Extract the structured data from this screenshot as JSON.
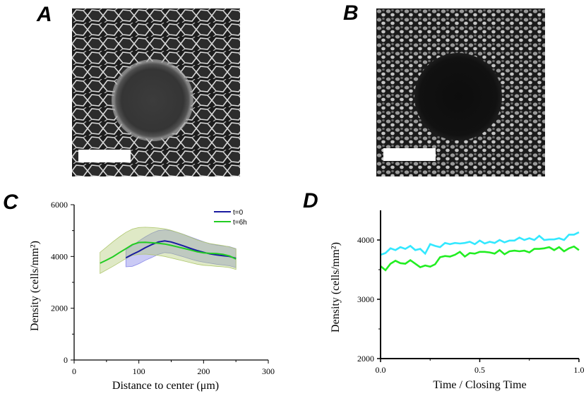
{
  "panels": {
    "a": "A",
    "b": "B",
    "c": "C",
    "d": "D"
  },
  "chart_data": [
    {
      "panel": "C",
      "type": "line",
      "title": "",
      "xlabel": "Distance to center (μm)",
      "ylabel": "Density (cells/mm²)",
      "xlim": [
        0,
        300
      ],
      "ylim": [
        0,
        6000
      ],
      "xticks": [
        0,
        100,
        200,
        300
      ],
      "yticks": [
        0,
        2000,
        4000,
        6000
      ],
      "legend_position": "top-right",
      "series": [
        {
          "name": "t=0",
          "color": "#1a1aa0",
          "band_color": "#8a8ae8",
          "x": [
            80,
            90,
            100,
            110,
            120,
            130,
            140,
            150,
            160,
            170,
            180,
            190,
            200,
            210,
            220,
            230,
            240,
            250
          ],
          "values": [
            3950,
            4080,
            4200,
            4340,
            4460,
            4560,
            4600,
            4560,
            4480,
            4400,
            4310,
            4230,
            4160,
            4100,
            4060,
            4030,
            4000,
            3930
          ],
          "lower": [
            3600,
            3620,
            3720,
            3850,
            3960,
            4080,
            4150,
            4120,
            4050,
            3980,
            3900,
            3830,
            3780,
            3740,
            3700,
            3670,
            3640,
            3570
          ],
          "upper": [
            4250,
            4420,
            4600,
            4760,
            4900,
            5000,
            5030,
            5000,
            4930,
            4850,
            4750,
            4660,
            4570,
            4490,
            4440,
            4410,
            4380,
            4300
          ]
        },
        {
          "name": "t=6h",
          "color": "#22cc22",
          "band_color": "#b0c870",
          "x": [
            40,
            50,
            60,
            70,
            80,
            90,
            100,
            110,
            120,
            130,
            140,
            150,
            160,
            170,
            180,
            190,
            200,
            210,
            220,
            230,
            240,
            250
          ],
          "values": [
            3740,
            3860,
            3990,
            4150,
            4300,
            4460,
            4540,
            4550,
            4530,
            4510,
            4480,
            4430,
            4370,
            4310,
            4250,
            4180,
            4140,
            4120,
            4110,
            4080,
            4020,
            3900
          ],
          "lower": [
            3340,
            3480,
            3620,
            3770,
            3920,
            4040,
            4080,
            4090,
            4070,
            4040,
            4000,
            3940,
            3880,
            3820,
            3760,
            3700,
            3660,
            3640,
            3620,
            3600,
            3570,
            3500
          ],
          "upper": [
            4160,
            4360,
            4570,
            4760,
            4930,
            5060,
            5120,
            5130,
            5120,
            5100,
            5070,
            5010,
            4930,
            4840,
            4740,
            4640,
            4560,
            4500,
            4460,
            4420,
            4370,
            4290
          ]
        }
      ]
    },
    {
      "panel": "D",
      "type": "line",
      "title": "",
      "xlabel": "Time / Closing Time",
      "ylabel": "Density (cells/mm²)",
      "xlim": [
        0,
        1
      ],
      "ylim": [
        2000,
        4500
      ],
      "xticks": [
        "0.0",
        "0.5",
        "1.0"
      ],
      "xtick_values": [
        0,
        0.5,
        1
      ],
      "yticks": [
        2000,
        3000,
        4000
      ],
      "series": [
        {
          "name": "cyan",
          "color": "#33e8ff",
          "x": [
            0,
            0.025,
            0.05,
            0.075,
            0.1,
            0.125,
            0.15,
            0.175,
            0.2,
            0.225,
            0.25,
            0.275,
            0.3,
            0.325,
            0.35,
            0.375,
            0.4,
            0.425,
            0.45,
            0.475,
            0.5,
            0.525,
            0.55,
            0.575,
            0.6,
            0.625,
            0.65,
            0.675,
            0.7,
            0.725,
            0.75,
            0.775,
            0.8,
            0.825,
            0.85,
            0.875,
            0.9,
            0.925,
            0.95,
            0.975,
            1.0
          ],
          "values": [
            3750,
            3780,
            3860,
            3830,
            3880,
            3850,
            3900,
            3830,
            3850,
            3770,
            3930,
            3900,
            3880,
            3950,
            3930,
            3950,
            3940,
            3950,
            3970,
            3930,
            3990,
            3940,
            3970,
            3950,
            4000,
            3960,
            3990,
            3990,
            4040,
            4000,
            4030,
            4000,
            4070,
            4000,
            4010,
            4010,
            4030,
            4000,
            4090,
            4090,
            4130
          ]
        },
        {
          "name": "green",
          "color": "#22ee22",
          "x": [
            0,
            0.025,
            0.05,
            0.075,
            0.1,
            0.125,
            0.15,
            0.175,
            0.2,
            0.225,
            0.25,
            0.275,
            0.3,
            0.325,
            0.35,
            0.375,
            0.4,
            0.425,
            0.45,
            0.475,
            0.5,
            0.525,
            0.55,
            0.575,
            0.6,
            0.625,
            0.65,
            0.675,
            0.7,
            0.725,
            0.75,
            0.775,
            0.8,
            0.825,
            0.85,
            0.875,
            0.9,
            0.925,
            0.95,
            0.975,
            1.0
          ],
          "values": [
            3560,
            3490,
            3600,
            3650,
            3610,
            3600,
            3660,
            3600,
            3540,
            3570,
            3550,
            3590,
            3710,
            3730,
            3720,
            3750,
            3800,
            3720,
            3780,
            3770,
            3800,
            3800,
            3790,
            3770,
            3830,
            3760,
            3810,
            3820,
            3810,
            3820,
            3790,
            3850,
            3850,
            3860,
            3880,
            3830,
            3880,
            3810,
            3860,
            3890,
            3830
          ]
        }
      ]
    }
  ]
}
